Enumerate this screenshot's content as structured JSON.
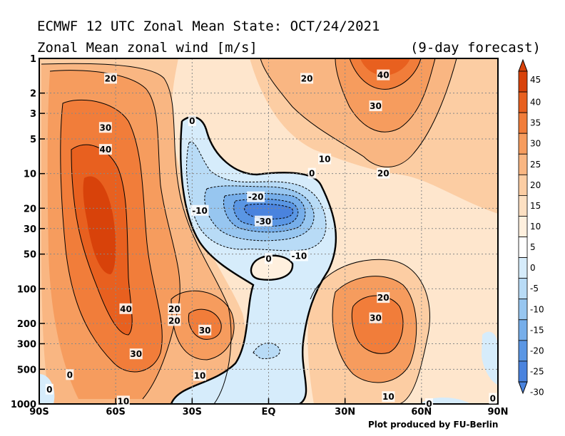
{
  "header": {
    "title_line1": "ECMWF 12 UTC Zonal Mean State: OCT/24/2021",
    "title_line2": "Zonal Mean zonal wind [m/s]",
    "forecast": "(9-day forecast)"
  },
  "footer": {
    "credit": "Plot produced by FU-Berlin"
  },
  "chart_data": {
    "type": "heatmap",
    "title": "Zonal Mean zonal wind [m/s]",
    "xlabel": "",
    "ylabel": "",
    "x_ticks": [
      "90S",
      "60S",
      "30S",
      "EQ",
      "30N",
      "60N",
      "90N"
    ],
    "x_tick_values": [
      -90,
      -60,
      -30,
      0,
      30,
      60,
      90
    ],
    "y_ticks": [
      "1",
      "2",
      "3",
      "5",
      "10",
      "20",
      "30",
      "50",
      "100",
      "200",
      "300",
      "500",
      "1000"
    ],
    "y_tick_values": [
      1,
      2,
      3,
      5,
      10,
      20,
      30,
      50,
      100,
      200,
      300,
      500,
      1000
    ],
    "y_scale": "log",
    "xlim": [
      -90,
      90
    ],
    "ylim": [
      1000,
      1
    ],
    "grid": true,
    "colorbar": {
      "labels": [
        "45",
        "40",
        "35",
        "30",
        "25",
        "20",
        "15",
        "10",
        "5",
        "0",
        "-5",
        "-10",
        "-15",
        "-20",
        "-25",
        "-30"
      ],
      "levels": [
        45,
        40,
        35,
        30,
        25,
        20,
        15,
        10,
        5,
        0,
        -5,
        -10,
        -15,
        -20,
        -25,
        -30
      ],
      "colors": [
        "#d8420a",
        "#e8601f",
        "#f17d3a",
        "#f69c5e",
        "#f9b682",
        "#fccda3",
        "#fde0c2",
        "#fff0de",
        "#ffffff",
        "#d6ecfb",
        "#b8dbf6",
        "#97c6f0",
        "#76aeea",
        "#5a96e4",
        "#4a83de"
      ]
    },
    "contour_labels": [
      {
        "text": "20",
        "lat": -62,
        "p": 1.5
      },
      {
        "text": "30",
        "lat": -64,
        "p": 4
      },
      {
        "text": "40",
        "lat": -64,
        "p": 6.2
      },
      {
        "text": "40",
        "lat": -56,
        "p": 150
      },
      {
        "text": "30",
        "lat": -52,
        "p": 370
      },
      {
        "text": "0",
        "lat": -78,
        "p": 560
      },
      {
        "text": "0",
        "lat": -86,
        "p": 750
      },
      {
        "text": "10",
        "lat": -57,
        "p": 950
      },
      {
        "text": "20",
        "lat": -37,
        "p": 150
      },
      {
        "text": "20",
        "lat": -37,
        "p": 190
      },
      {
        "text": "30",
        "lat": -25,
        "p": 230
      },
      {
        "text": "10",
        "lat": -27,
        "p": 570
      },
      {
        "text": "0",
        "lat": -30,
        "p": 3.5
      },
      {
        "text": "-10",
        "lat": -27,
        "p": 21
      },
      {
        "text": "-20",
        "lat": -5,
        "p": 16
      },
      {
        "text": "-30",
        "lat": -2,
        "p": 26
      },
      {
        "text": "0",
        "lat": 0,
        "p": 55
      },
      {
        "text": "-10",
        "lat": 12,
        "p": 52
      },
      {
        "text": "0",
        "lat": 17,
        "p": 10
      },
      {
        "text": "10",
        "lat": 22,
        "p": 7.5
      },
      {
        "text": "20",
        "lat": 15,
        "p": 1.5
      },
      {
        "text": "40",
        "lat": 45,
        "p": 1.4
      },
      {
        "text": "30",
        "lat": 42,
        "p": 2.6
      },
      {
        "text": "20",
        "lat": 45,
        "p": 10
      },
      {
        "text": "20",
        "lat": 45,
        "p": 120
      },
      {
        "text": "30",
        "lat": 42,
        "p": 180
      },
      {
        "text": "10",
        "lat": 47,
        "p": 870
      },
      {
        "text": "0",
        "lat": 63,
        "p": 1000
      },
      {
        "text": "0",
        "lat": 88,
        "p": 900
      }
    ]
  }
}
